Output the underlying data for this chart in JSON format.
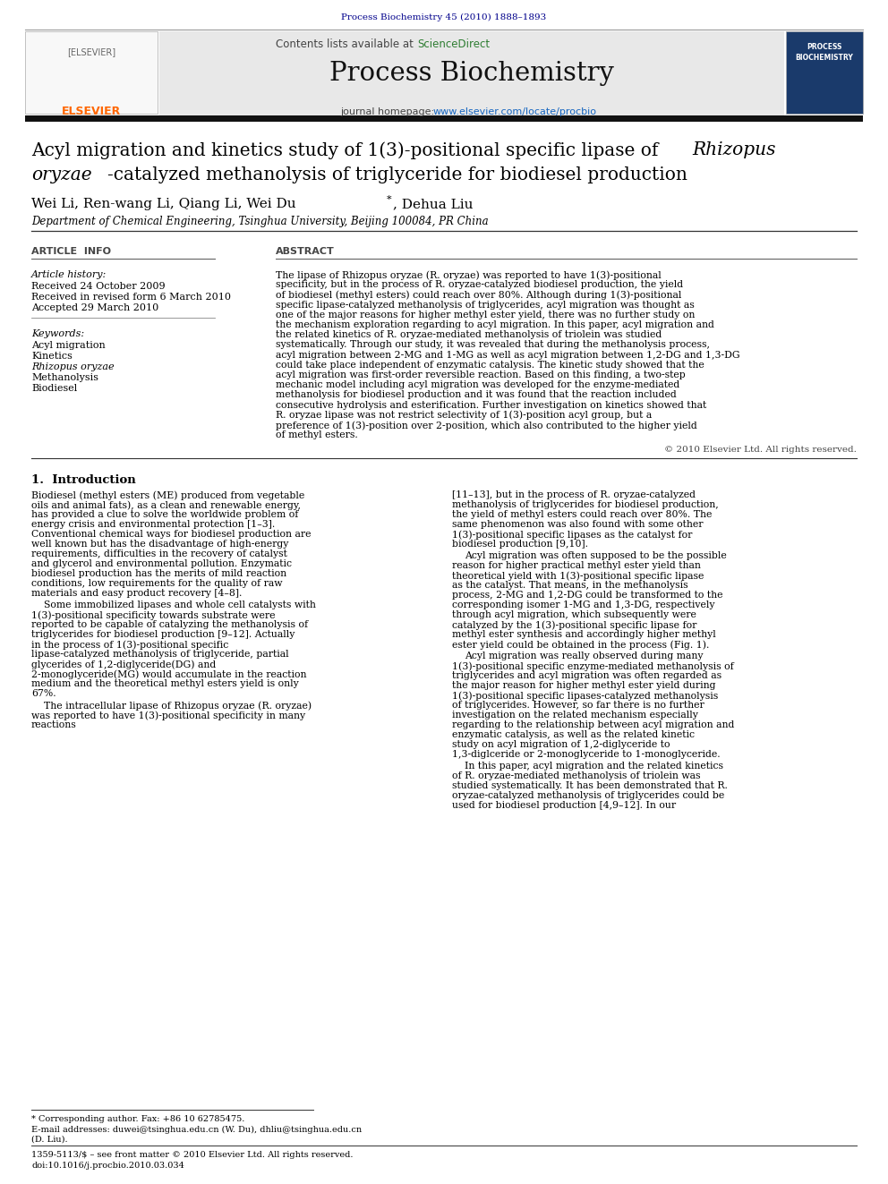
{
  "journal_ref": "Process Biochemistry 45 (2010) 1888–1893",
  "contents_line": "Contents lists available at ScienceDirect",
  "journal_name": "Process Biochemistry",
  "journal_homepage": "journal homepage: www.elsevier.com/locate/procbio",
  "title_line1": "Acyl migration and kinetics study of 1(3)-positional specific lipase of ",
  "title_italic": "Rhizopus",
  "title_line2_italic": "oryzae",
  "title_line2b": "-catalyzed methanolysis of triglyceride for biodiesel production",
  "authors_pre": "Wei Li, Ren-wang Li, Qiang Li, Wei Du",
  "authors_post": ", Dehua Liu",
  "affiliation": "Department of Chemical Engineering, Tsinghua University, Beijing 100084, PR China",
  "article_info_header": "ARTICLE INFO",
  "abstract_header": "ABSTRACT",
  "article_history_header": "Article history:",
  "article_history": [
    "Received 24 October 2009",
    "Received in revised form 6 March 2010",
    "Accepted 29 March 2010"
  ],
  "keywords_header": "Keywords:",
  "keywords": [
    "Acyl migration",
    "Kinetics",
    "Rhizopus oryzae",
    "Methanolysis",
    "Biodiesel"
  ],
  "keywords_italic": [
    "Rhizopus oryzae"
  ],
  "abstract_text": "The lipase of Rhizopus oryzae (R. oryzae) was reported to have 1(3)-positional specificity, but in the process of R. oryzae-catalyzed biodiesel production, the yield of biodiesel (methyl esters) could reach over 80%. Although during 1(3)-positional specific lipase-catalyzed methanolysis of triglycerides, acyl migration was thought as one of the major reasons for higher methyl ester yield, there was no further study on the mechanism exploration regarding to acyl migration. In this paper, acyl migration and the related kinetics of R. oryzae-mediated methanolysis of triolein was studied systematically. Through our study, it was revealed that during the methanolysis process, acyl migration between 2-MG and 1-MG as well as acyl migration between 1,2-DG and 1,3-DG could take place independent of enzymatic catalysis. The kinetic study showed that the acyl migration was first-order reversible reaction. Based on this finding, a two-step mechanic model including acyl migration was developed for the enzyme-mediated methanolysis for biodiesel production and it was found that the reaction included consecutive hydrolysis and esterification. Further investigation on kinetics showed that R. oryzae lipase was not restrict selectivity of 1(3)-position acyl group, but a preference of 1(3)-position over 2-position, which also contributed to the higher yield of methyl esters.",
  "copyright": "© 2010 Elsevier Ltd. All rights reserved.",
  "section1_header": "1.  Introduction",
  "section1_col1": "Biodiesel (methyl esters (ME) produced from vegetable oils and animal fats), as a clean and renewable energy, has provided a clue to solve the worldwide problem of energy crisis and environmental protection [1–3]. Conventional chemical ways for biodiesel production are well known but has the disadvantage of high-energy requirements, difficulties in the recovery of catalyst and glycerol and environmental pollution. Enzymatic biodiesel production has the merits of mild reaction conditions, low requirements for the quality of raw materials and easy product recovery [4–8].\n    Some immobilized lipases and whole cell catalysts with 1(3)-positional specificity towards substrate were reported to be capable of catalyzing the methanolysis of triglycerides for biodiesel production [9–12]. Actually in the process of 1(3)-positional specific lipase-catalyzed methanolysis of triglyceride, partial glycerides of 1,2-diglyceride(DG) and 2-monoglyceride(MG) would accumulate in the reaction medium and the theoretical methyl esters yield is only 67%.\n    The intracellular lipase of Rhizopus oryzae (R. oryzae) was reported to have 1(3)-positional specificity in many reactions",
  "section1_col2": "[11–13], but in the process of R. oryzae-catalyzed methanolysis of triglycerides for biodiesel production, the yield of methyl esters could reach over 80%. The same phenomenon was also found with some other 1(3)-positional specific lipases as the catalyst for biodiesel production [9,10].\n    Acyl migration was often supposed to be the possible reason for higher practical methyl ester yield than theoretical yield with 1(3)-positional specific lipase as the catalyst. That means, in the methanolysis process, 2-MG and 1,2-DG could be transformed to the corresponding isomer 1-MG and 1,3-DG, respectively through acyl migration, which subsequently were catalyzed by the 1(3)-positional specific lipase for methyl ester synthesis and accordingly higher methyl ester yield could be obtained in the process (Fig. 1).\n    Acyl migration was really observed during many 1(3)-positional specific enzyme-mediated methanolysis of triglycerides and acyl migration was often regarded as the major reason for higher methyl ester yield during 1(3)-positional specific lipases-catalyzed methanolysis of triglycerides. However, so far there is no further investigation on the related mechanism especially regarding to the relationship between acyl migration and enzymatic catalysis, as well as the related kinetic study on acyl migration of 1,2-diglyceride to 1,3-diglceride or 2-monoglyceride to 1-monoglyceride.\n    In this paper, acyl migration and the related kinetics of R. oryzae-mediated methanolysis of triolein was studied systematically. It has been demonstrated that R. oryzae-catalyzed methanolysis of triglycerides could be used for biodiesel production [4,9–12]. In our",
  "footer_line1": "* Corresponding author. Fax: +86 10 62785475.",
  "footer_line2": "E-mail addresses: duwei@tsinghua.edu.cn (W. Du), dhliu@tsinghua.edu.cn",
  "footer_line3": "(D. Liu).",
  "footer_issn": "1359-5113/$ – see front matter © 2010 Elsevier Ltd. All rights reserved.",
  "footer_doi": "doi:10.1016/j.procbio.2010.03.034",
  "bg_color": "#ffffff",
  "header_bar_color": "#111111",
  "journal_ref_color": "#00008B",
  "sciencedirect_color": "#2e7d32",
  "homepage_color": "#1565c0",
  "header_bg_color": "#e8e8e8",
  "title_color": "#000000",
  "section_header_color": "#000000"
}
